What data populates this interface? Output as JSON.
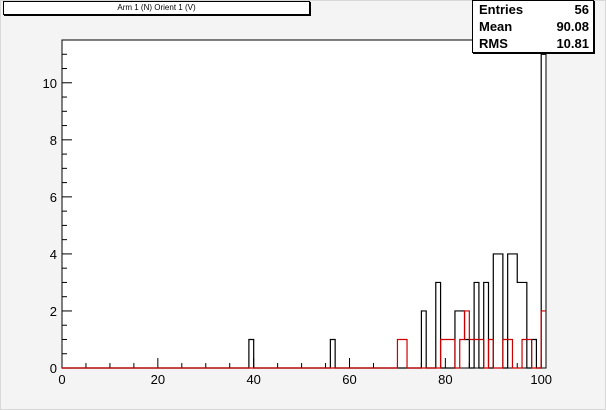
{
  "title": "Arm 1 (N) Orient 1 (V)",
  "stats": [
    {
      "key": "Entries",
      "value": "56"
    },
    {
      "key": "Mean",
      "value": "90.08"
    },
    {
      "key": "RMS",
      "value": "10.81"
    }
  ],
  "colors": {
    "series_black": "#000000",
    "series_red": "#cc0000"
  },
  "chart_data": {
    "type": "histogram",
    "title": "Arm 1 (N) Orient 1 (V)",
    "xlabel": "",
    "ylabel": "",
    "xlim": [
      0,
      101
    ],
    "ylim": [
      0,
      11.5
    ],
    "x_ticks": [
      0,
      20,
      40,
      60,
      80,
      100
    ],
    "y_ticks": [
      0,
      2,
      4,
      6,
      8,
      10
    ],
    "bin_width": 1,
    "series": [
      {
        "color": "#000000",
        "bins": [
          [
            39,
            1
          ],
          [
            56,
            1
          ],
          [
            75,
            2
          ],
          [
            78,
            3
          ],
          [
            82,
            2
          ],
          [
            83,
            2
          ],
          [
            84,
            1
          ],
          [
            86,
            3
          ],
          [
            88,
            3
          ],
          [
            90,
            4
          ],
          [
            91,
            4
          ],
          [
            93,
            4
          ],
          [
            94,
            4
          ],
          [
            95,
            3
          ],
          [
            96,
            3
          ],
          [
            98,
            1
          ],
          [
            100,
            11
          ]
        ]
      },
      {
        "color": "#cc0000",
        "bins": [
          [
            70,
            1
          ],
          [
            71,
            1
          ],
          [
            79,
            1
          ],
          [
            80,
            1
          ],
          [
            81,
            1
          ],
          [
            83,
            1
          ],
          [
            84,
            2
          ],
          [
            85,
            1
          ],
          [
            86,
            1
          ],
          [
            87,
            1
          ],
          [
            89,
            1
          ],
          [
            92,
            1
          ],
          [
            93,
            1
          ],
          [
            96,
            1
          ],
          [
            97,
            1
          ],
          [
            100,
            2
          ]
        ]
      }
    ]
  }
}
